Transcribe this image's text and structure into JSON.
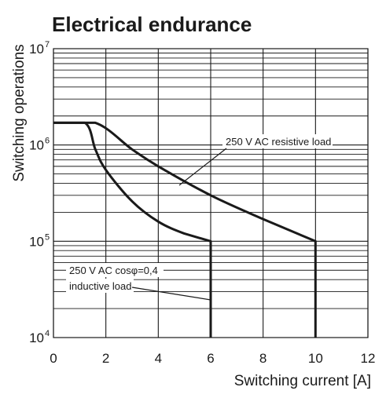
{
  "chart_data": {
    "type": "line",
    "title": "Electrical endurance",
    "xlabel": "Switching current [A]",
    "ylabel": "Switching operations",
    "xlim": [
      0,
      12
    ],
    "ylim": [
      10000,
      10000000
    ],
    "yscale": "log",
    "xticks": [
      "0",
      "2",
      "4",
      "6",
      "8",
      "10",
      "12"
    ],
    "yticks": [
      {
        "base": "10",
        "exp": "4",
        "value": 10000
      },
      {
        "base": "10",
        "exp": "5",
        "value": 100000
      },
      {
        "base": "10",
        "exp": "6",
        "value": 1000000
      },
      {
        "base": "10",
        "exp": "7",
        "value": 10000000
      }
    ],
    "grid": true,
    "series": [
      {
        "name": "250 V AC resistive load",
        "points": [
          [
            0,
            1700000
          ],
          [
            1.6,
            1700000
          ],
          [
            3,
            900000
          ],
          [
            4,
            600000
          ],
          [
            6,
            300000
          ],
          [
            8,
            170000
          ],
          [
            10,
            100000
          ],
          [
            10,
            10000
          ]
        ]
      },
      {
        "name": "250 V AC cosφ=0,4 inductive load",
        "points": [
          [
            0,
            1700000
          ],
          [
            1.2,
            1700000
          ],
          [
            1.6,
            900000
          ],
          [
            2,
            550000
          ],
          [
            3,
            260000
          ],
          [
            4,
            160000
          ],
          [
            5,
            120000
          ],
          [
            6,
            100000
          ],
          [
            6,
            10000
          ]
        ]
      }
    ],
    "annotations": {
      "resistive": "250 V AC resistive load",
      "inductive_line1": "250 V AC cosφ=0,4",
      "inductive_line2": "inductive load"
    }
  }
}
